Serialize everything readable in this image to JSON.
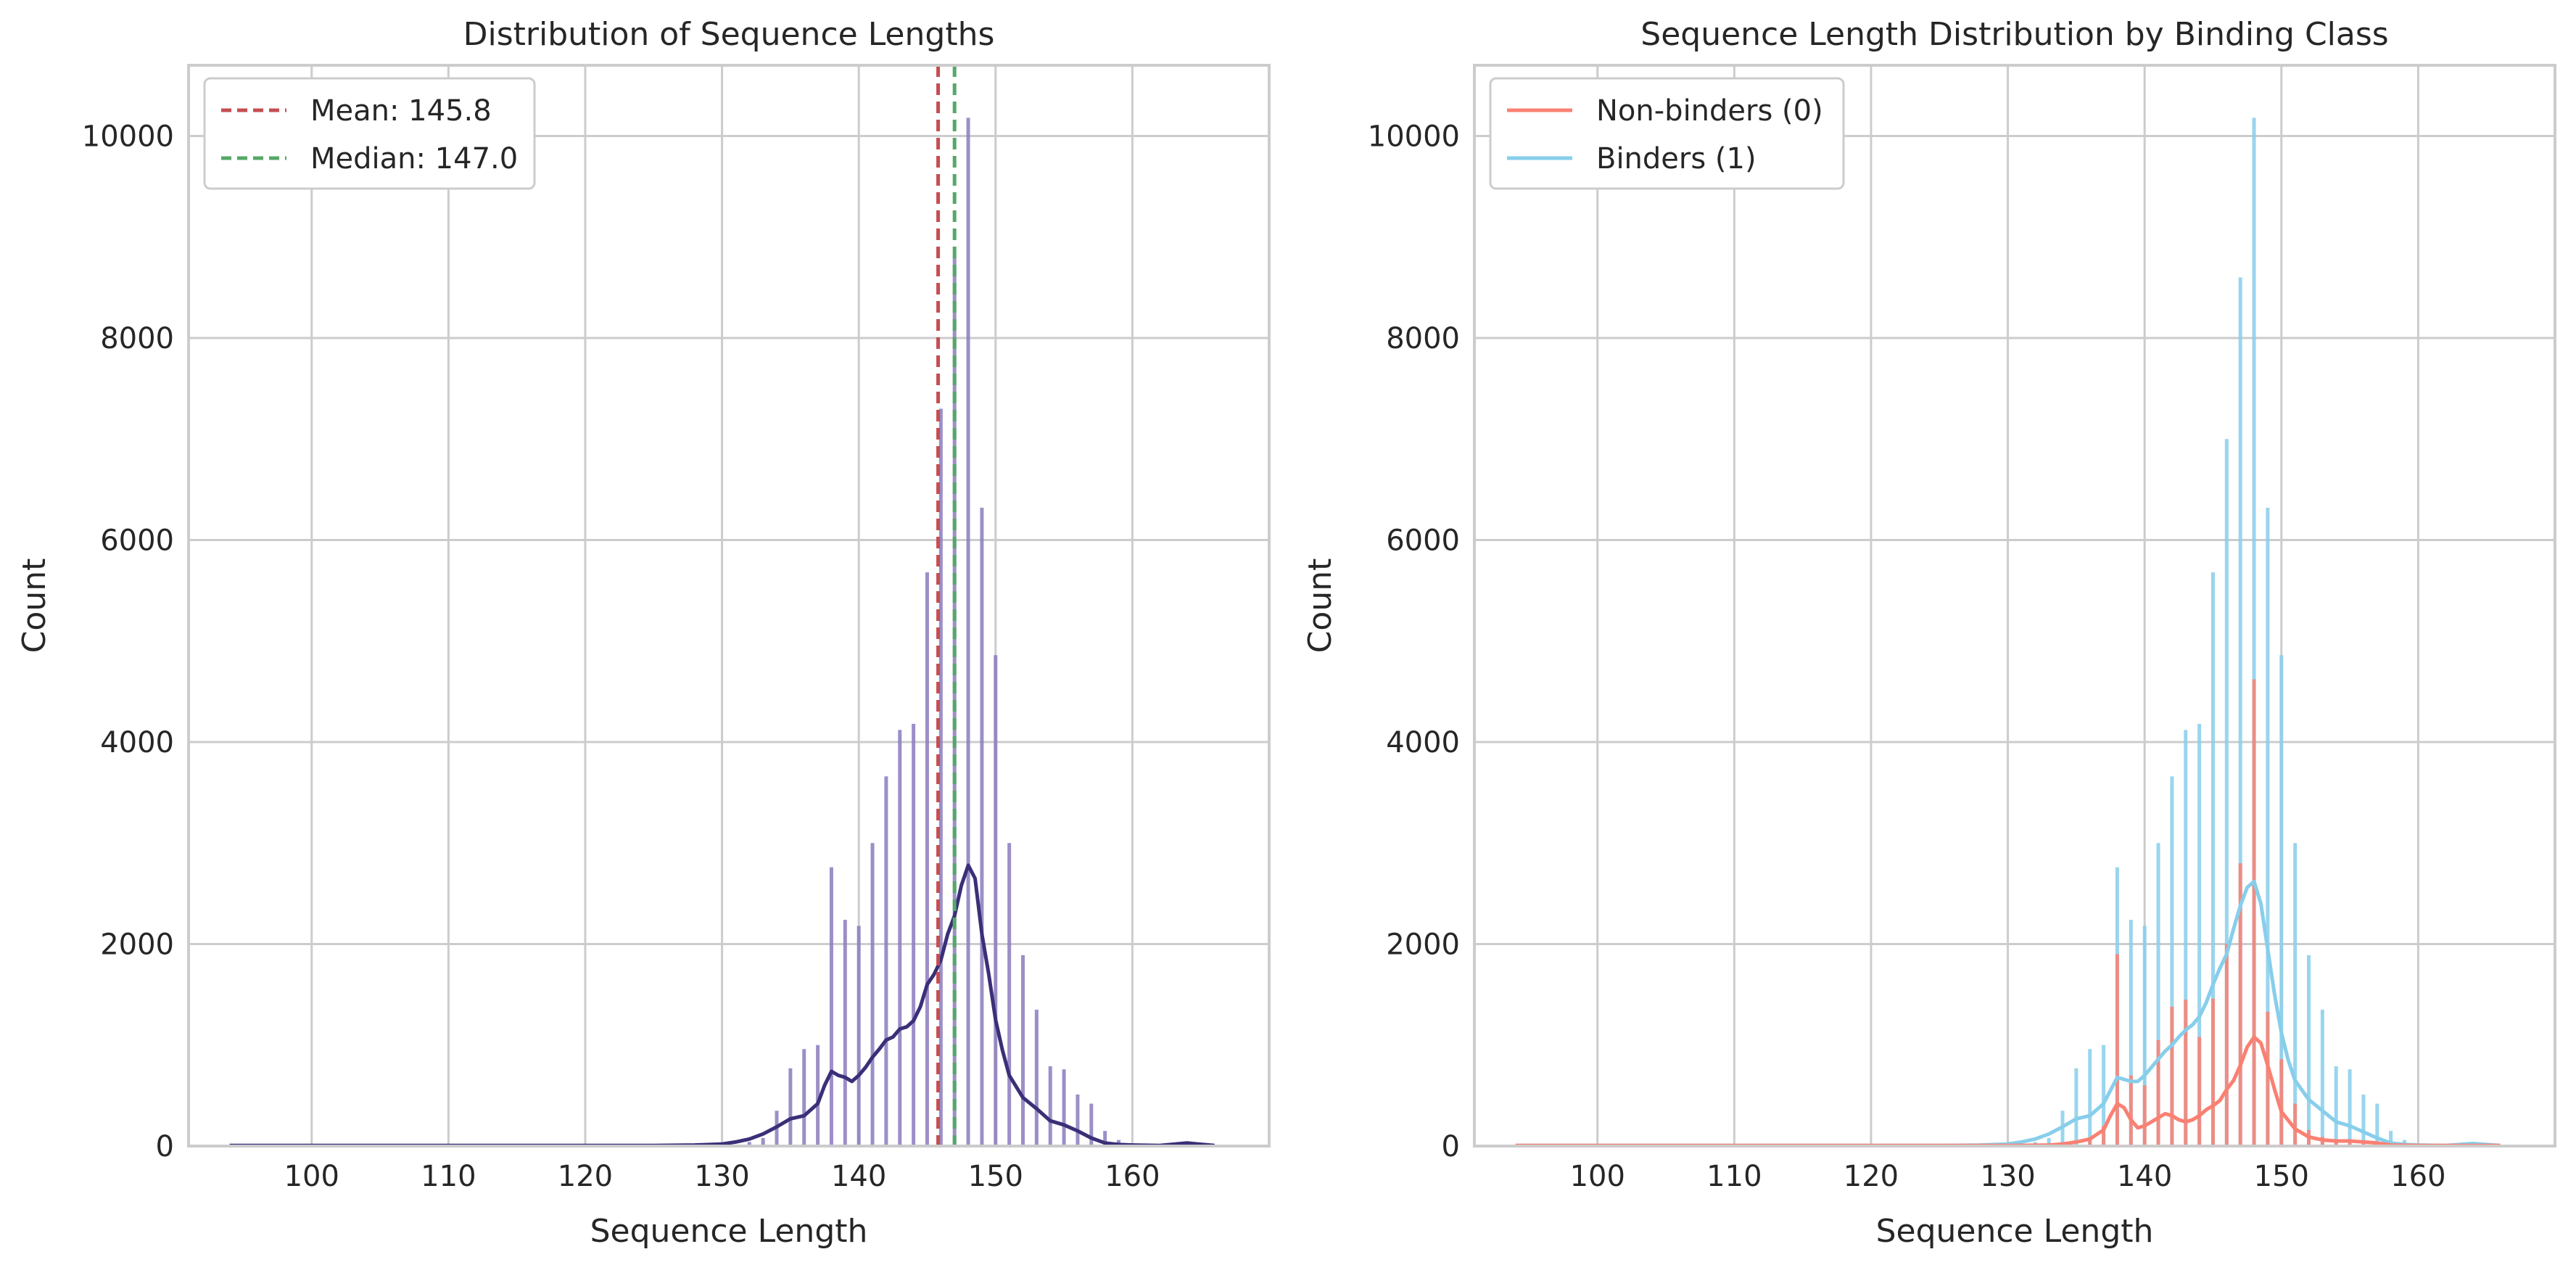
{
  "chart_data": [
    {
      "type": "histogram",
      "title": "Distribution of Sequence Lengths",
      "xlabel": "Sequence Length",
      "ylabel": "Count",
      "xlim": [
        91,
        170
      ],
      "ylim": [
        0,
        10700
      ],
      "xticks": [
        100,
        110,
        120,
        130,
        140,
        150,
        160
      ],
      "yticks": [
        0,
        2000,
        4000,
        6000,
        8000,
        10000
      ],
      "grid": true,
      "legend": "top-left",
      "bar_color": "#8b7bbd",
      "bins": {
        "x": [
          94,
          100,
          107,
          113,
          118,
          124,
          130,
          132,
          133,
          134,
          135,
          136,
          137,
          138,
          139,
          140,
          141,
          142,
          143,
          144,
          145,
          146,
          147,
          148,
          149,
          150,
          151,
          152,
          153,
          154,
          155,
          156,
          157,
          158,
          159,
          160,
          164,
          165
        ],
        "counts": [
          10,
          5,
          10,
          5,
          5,
          5,
          10,
          40,
          80,
          350,
          770,
          960,
          1000,
          2760,
          2240,
          2180,
          3000,
          3660,
          4120,
          4180,
          5680,
          7300,
          8800,
          10180,
          6320,
          4860,
          3000,
          1890,
          1350,
          790,
          760,
          510,
          420,
          150,
          60,
          20,
          40,
          10
        ]
      },
      "kde": {
        "color": "#3b2f78",
        "x": [
          94,
          100,
          110,
          120,
          125,
          128,
          130,
          131,
          132,
          133,
          134,
          135,
          136,
          137,
          137.5,
          138,
          138.5,
          139,
          139.5,
          140,
          140.5,
          141,
          141.5,
          142,
          142.5,
          143,
          143.5,
          144,
          144.5,
          145,
          145.5,
          146,
          146.5,
          147,
          147.5,
          148,
          148.5,
          149,
          149.5,
          150,
          150.5,
          151,
          152,
          153,
          154,
          155,
          156,
          157,
          158,
          159,
          160,
          162,
          164,
          166
        ],
        "y": [
          5,
          5,
          5,
          5,
          5,
          10,
          20,
          40,
          70,
          120,
          190,
          270,
          300,
          420,
          600,
          740,
          700,
          680,
          640,
          700,
          780,
          880,
          960,
          1050,
          1080,
          1160,
          1180,
          1240,
          1380,
          1600,
          1700,
          1840,
          2100,
          2280,
          2580,
          2780,
          2650,
          2100,
          1700,
          1250,
          950,
          700,
          480,
          370,
          250,
          210,
          150,
          80,
          30,
          15,
          10,
          5,
          30,
          5
        ]
      },
      "reference_lines": [
        {
          "label": "Mean: 145.8",
          "x": 145.8,
          "color": "#c44e52"
        },
        {
          "label": "Median: 147.0",
          "x": 147.0,
          "color": "#55a868"
        }
      ]
    },
    {
      "type": "histogram",
      "title": "Sequence Length Distribution by Binding Class",
      "xlabel": "Sequence Length",
      "ylabel": "Count",
      "xlim": [
        91,
        170
      ],
      "ylim": [
        0,
        10700
      ],
      "xticks": [
        100,
        110,
        120,
        130,
        140,
        150,
        160
      ],
      "yticks": [
        0,
        2000,
        4000,
        6000,
        8000,
        10000
      ],
      "grid": true,
      "legend": "top-left",
      "series": [
        {
          "name": "Binders (1)",
          "color": "#87ceeb",
          "bins": {
            "x": [
              94,
              100,
              107,
              113,
              118,
              124,
              130,
              132,
              133,
              134,
              135,
              136,
              137,
              138,
              139,
              140,
              141,
              142,
              143,
              144,
              145,
              146,
              147,
              148,
              149,
              150,
              151,
              152,
              153,
              154,
              155,
              156,
              157,
              158,
              159,
              160,
              164,
              165
            ],
            "counts": [
              10,
              5,
              10,
              5,
              5,
              5,
              10,
              40,
              80,
              350,
              770,
              960,
              1000,
              2760,
              2240,
              2180,
              3000,
              3660,
              4120,
              4180,
              5680,
              7000,
              8600,
              10180,
              6320,
              4860,
              3000,
              1890,
              1350,
              790,
              760,
              510,
              420,
              150,
              60,
              20,
              40,
              10
            ]
          },
          "kde": {
            "x": [
              94,
              100,
              110,
              120,
              125,
              128,
              130,
              131,
              132,
              133,
              134,
              135,
              136,
              137,
              137.5,
              138,
              138.5,
              139,
              139.5,
              140,
              140.5,
              141,
              141.5,
              142,
              142.5,
              143,
              143.5,
              144,
              144.5,
              145,
              145.5,
              146,
              146.5,
              147,
              147.5,
              148,
              148.5,
              149,
              149.5,
              150,
              150.5,
              151,
              152,
              153,
              154,
              155,
              156,
              157,
              158,
              159,
              160,
              162,
              164,
              166
            ],
            "y": [
              5,
              5,
              5,
              5,
              5,
              10,
              20,
              40,
              70,
              120,
              190,
              270,
              300,
              420,
              550,
              680,
              660,
              640,
              640,
              700,
              780,
              860,
              940,
              1000,
              1080,
              1150,
              1200,
              1280,
              1420,
              1600,
              1760,
              1900,
              2150,
              2380,
              2560,
              2620,
              2400,
              1950,
              1500,
              1120,
              850,
              650,
              460,
              350,
              240,
              200,
              140,
              80,
              30,
              15,
              10,
              5,
              25,
              5
            ]
          }
        },
        {
          "name": "Non-binders (0)",
          "color": "#fa8072",
          "bins": {
            "x": [
              136,
              137,
              138,
              139,
              140,
              141,
              142,
              143,
              144,
              145,
              146,
              147,
              148,
              149,
              150,
              151,
              152,
              153,
              154,
              155,
              156,
              157
            ],
            "counts": [
              60,
              200,
              1900,
              700,
              600,
              1050,
              1380,
              1450,
              1080,
              1460,
              2000,
              2800,
              4620,
              1330,
              860,
              420,
              160,
              90,
              50,
              30,
              20,
              10
            ]
          },
          "kde": {
            "x": [
              94,
              110,
              120,
              130,
              133,
              134,
              135,
              136,
              137,
              137.5,
              138,
              138.5,
              139,
              139.5,
              140,
              140.5,
              141,
              141.5,
              142,
              142.5,
              143,
              143.5,
              144,
              144.5,
              145,
              145.5,
              146,
              146.5,
              147,
              147.5,
              148,
              148.5,
              149,
              149.5,
              150,
              151,
              152,
              153,
              154,
              155,
              156,
              157,
              158,
              160,
              166
            ],
            "y": [
              5,
              5,
              5,
              5,
              10,
              20,
              40,
              70,
              160,
              300,
              420,
              380,
              260,
              180,
              200,
              240,
              280,
              320,
              300,
              260,
              240,
              260,
              300,
              360,
              400,
              450,
              560,
              650,
              800,
              980,
              1080,
              1020,
              800,
              560,
              340,
              170,
              90,
              60,
              50,
              50,
              40,
              30,
              10,
              5,
              5
            ]
          }
        }
      ]
    }
  ]
}
